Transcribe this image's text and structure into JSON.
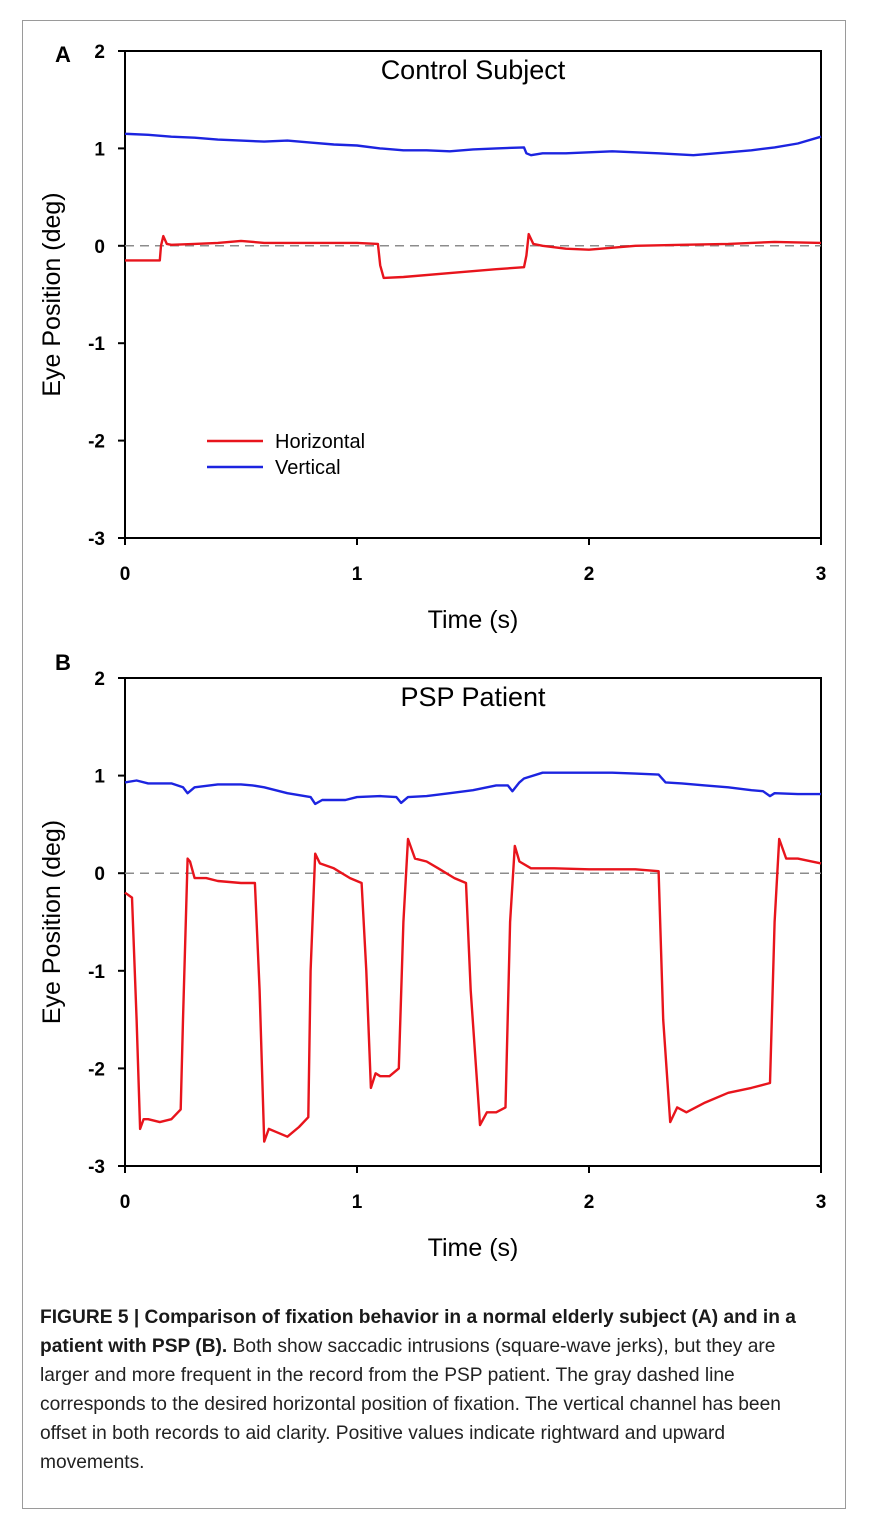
{
  "chart_data": [
    {
      "panel_label": "A",
      "type": "line",
      "title": "Control Subject",
      "xlabel": "Time (s)",
      "ylabel": "Eye Position (deg)",
      "xlim": [
        0,
        3
      ],
      "ylim": [
        -3,
        2
      ],
      "xticks": [
        "0",
        "1",
        "2",
        "3"
      ],
      "yticks": [
        "2",
        "1",
        "0",
        "-1",
        "-2",
        "-3"
      ],
      "reference_line": {
        "y": 0,
        "style": "dashed",
        "color": "#8c8c8c"
      },
      "legend": {
        "placement": "lower-left",
        "entries": [
          "Horizontal",
          "Vertical"
        ]
      },
      "series": [
        {
          "name": "Horizontal",
          "color": "#e8141c",
          "points": [
            [
              0,
              -0.15
            ],
            [
              0.15,
              -0.15
            ],
            [
              0.155,
              0.0
            ],
            [
              0.165,
              0.1
            ],
            [
              0.18,
              0.02
            ],
            [
              0.2,
              0.01
            ],
            [
              0.3,
              0.02
            ],
            [
              0.4,
              0.03
            ],
            [
              0.5,
              0.05
            ],
            [
              0.6,
              0.03
            ],
            [
              0.8,
              0.03
            ],
            [
              1.0,
              0.03
            ],
            [
              1.09,
              0.02
            ],
            [
              1.1,
              -0.2
            ],
            [
              1.115,
              -0.33
            ],
            [
              1.2,
              -0.32
            ],
            [
              1.4,
              -0.28
            ],
            [
              1.6,
              -0.24
            ],
            [
              1.72,
              -0.22
            ],
            [
              1.73,
              -0.1
            ],
            [
              1.74,
              0.12
            ],
            [
              1.76,
              0.02
            ],
            [
              1.8,
              0.0
            ],
            [
              1.9,
              -0.03
            ],
            [
              2.0,
              -0.04
            ],
            [
              2.2,
              0.0
            ],
            [
              2.4,
              0.01
            ],
            [
              2.6,
              0.02
            ],
            [
              2.8,
              0.04
            ],
            [
              3.0,
              0.03
            ]
          ]
        },
        {
          "name": "Vertical",
          "color": "#1c24e0",
          "points": [
            [
              0,
              1.15
            ],
            [
              0.1,
              1.14
            ],
            [
              0.2,
              1.12
            ],
            [
              0.3,
              1.11
            ],
            [
              0.4,
              1.09
            ],
            [
              0.5,
              1.08
            ],
            [
              0.6,
              1.07
            ],
            [
              0.7,
              1.08
            ],
            [
              0.8,
              1.06
            ],
            [
              0.9,
              1.04
            ],
            [
              1.0,
              1.03
            ],
            [
              1.1,
              1.0
            ],
            [
              1.2,
              0.98
            ],
            [
              1.3,
              0.98
            ],
            [
              1.4,
              0.97
            ],
            [
              1.5,
              0.99
            ],
            [
              1.6,
              1.0
            ],
            [
              1.72,
              1.01
            ],
            [
              1.73,
              0.95
            ],
            [
              1.75,
              0.93
            ],
            [
              1.8,
              0.95
            ],
            [
              1.9,
              0.95
            ],
            [
              2.0,
              0.96
            ],
            [
              2.1,
              0.97
            ],
            [
              2.2,
              0.96
            ],
            [
              2.3,
              0.95
            ],
            [
              2.45,
              0.93
            ],
            [
              2.6,
              0.96
            ],
            [
              2.7,
              0.98
            ],
            [
              2.8,
              1.01
            ],
            [
              2.9,
              1.05
            ],
            [
              3.0,
              1.12
            ]
          ]
        }
      ]
    },
    {
      "panel_label": "B",
      "type": "line",
      "title": "PSP Patient",
      "xlabel": "Time (s)",
      "ylabel": "Eye Position (deg)",
      "xlim": [
        0,
        3
      ],
      "ylim": [
        -3,
        2
      ],
      "xticks": [
        "0",
        "1",
        "2",
        "3"
      ],
      "yticks": [
        "2",
        "1",
        "0",
        "-1",
        "-2",
        "-3"
      ],
      "reference_line": {
        "y": 0,
        "style": "dashed",
        "color": "#8c8c8c"
      },
      "series": [
        {
          "name": "Horizontal",
          "color": "#e8141c",
          "points": [
            [
              0,
              -0.2
            ],
            [
              0.03,
              -0.25
            ],
            [
              0.05,
              -1.5
            ],
            [
              0.065,
              -2.62
            ],
            [
              0.08,
              -2.52
            ],
            [
              0.1,
              -2.52
            ],
            [
              0.15,
              -2.55
            ],
            [
              0.2,
              -2.52
            ],
            [
              0.24,
              -2.42
            ],
            [
              0.25,
              -1.5
            ],
            [
              0.27,
              0.15
            ],
            [
              0.28,
              0.12
            ],
            [
              0.3,
              -0.05
            ],
            [
              0.35,
              -0.05
            ],
            [
              0.4,
              -0.08
            ],
            [
              0.5,
              -0.1
            ],
            [
              0.56,
              -0.1
            ],
            [
              0.58,
              -1.2
            ],
            [
              0.6,
              -2.75
            ],
            [
              0.62,
              -2.62
            ],
            [
              0.65,
              -2.65
            ],
            [
              0.7,
              -2.7
            ],
            [
              0.75,
              -2.6
            ],
            [
              0.79,
              -2.5
            ],
            [
              0.8,
              -1.0
            ],
            [
              0.82,
              0.2
            ],
            [
              0.84,
              0.1
            ],
            [
              0.9,
              0.05
            ],
            [
              0.97,
              -0.05
            ],
            [
              1.02,
              -0.1
            ],
            [
              1.04,
              -1.0
            ],
            [
              1.06,
              -2.2
            ],
            [
              1.08,
              -2.05
            ],
            [
              1.1,
              -2.08
            ],
            [
              1.14,
              -2.08
            ],
            [
              1.18,
              -2.0
            ],
            [
              1.2,
              -0.5
            ],
            [
              1.22,
              0.35
            ],
            [
              1.25,
              0.15
            ],
            [
              1.3,
              0.12
            ],
            [
              1.35,
              0.05
            ],
            [
              1.42,
              -0.05
            ],
            [
              1.47,
              -0.1
            ],
            [
              1.49,
              -1.2
            ],
            [
              1.53,
              -2.58
            ],
            [
              1.56,
              -2.45
            ],
            [
              1.6,
              -2.45
            ],
            [
              1.64,
              -2.4
            ],
            [
              1.66,
              -0.5
            ],
            [
              1.68,
              0.28
            ],
            [
              1.7,
              0.12
            ],
            [
              1.75,
              0.05
            ],
            [
              1.85,
              0.05
            ],
            [
              2.0,
              0.04
            ],
            [
              2.2,
              0.04
            ],
            [
              2.3,
              0.02
            ],
            [
              2.32,
              -1.5
            ],
            [
              2.35,
              -2.55
            ],
            [
              2.38,
              -2.4
            ],
            [
              2.42,
              -2.45
            ],
            [
              2.5,
              -2.35
            ],
            [
              2.6,
              -2.25
            ],
            [
              2.7,
              -2.2
            ],
            [
              2.78,
              -2.15
            ],
            [
              2.8,
              -0.5
            ],
            [
              2.82,
              0.35
            ],
            [
              2.85,
              0.15
            ],
            [
              2.9,
              0.15
            ],
            [
              3.0,
              0.1
            ]
          ]
        },
        {
          "name": "Vertical",
          "color": "#1c24e0",
          "points": [
            [
              0,
              0.93
            ],
            [
              0.05,
              0.95
            ],
            [
              0.1,
              0.92
            ],
            [
              0.2,
              0.92
            ],
            [
              0.25,
              0.88
            ],
            [
              0.27,
              0.82
            ],
            [
              0.3,
              0.88
            ],
            [
              0.4,
              0.91
            ],
            [
              0.5,
              0.91
            ],
            [
              0.55,
              0.9
            ],
            [
              0.6,
              0.88
            ],
            [
              0.7,
              0.82
            ],
            [
              0.8,
              0.78
            ],
            [
              0.82,
              0.71
            ],
            [
              0.85,
              0.75
            ],
            [
              0.95,
              0.75
            ],
            [
              1.0,
              0.78
            ],
            [
              1.1,
              0.79
            ],
            [
              1.17,
              0.78
            ],
            [
              1.19,
              0.72
            ],
            [
              1.22,
              0.78
            ],
            [
              1.3,
              0.79
            ],
            [
              1.4,
              0.82
            ],
            [
              1.5,
              0.85
            ],
            [
              1.6,
              0.9
            ],
            [
              1.65,
              0.9
            ],
            [
              1.67,
              0.84
            ],
            [
              1.7,
              0.93
            ],
            [
              1.72,
              0.97
            ],
            [
              1.8,
              1.03
            ],
            [
              1.9,
              1.03
            ],
            [
              2.0,
              1.03
            ],
            [
              2.1,
              1.03
            ],
            [
              2.2,
              1.02
            ],
            [
              2.3,
              1.01
            ],
            [
              2.33,
              0.93
            ],
            [
              2.4,
              0.92
            ],
            [
              2.5,
              0.9
            ],
            [
              2.6,
              0.88
            ],
            [
              2.7,
              0.85
            ],
            [
              2.75,
              0.84
            ],
            [
              2.78,
              0.79
            ],
            [
              2.8,
              0.82
            ],
            [
              2.9,
              0.81
            ],
            [
              3.0,
              0.81
            ]
          ]
        }
      ]
    }
  ],
  "caption": {
    "bold": "FIGURE 5 | Comparison of fixation behavior in a normal elderly subject (A) and in a patient with PSP (B).",
    "text": " Both show saccadic intrusions (square-wave jerks), but they are larger and more frequent in the record from the PSP patient. The gray dashed line corresponds to the desired horizontal position of fixation. The vertical channel has been offset in both records to aid clarity. Positive values indicate rightward and upward movements."
  }
}
